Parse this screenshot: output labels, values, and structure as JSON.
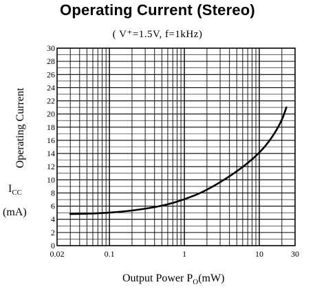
{
  "chart_data": {
    "type": "line",
    "title": "Operating Current (Stereo)",
    "subtitle": "( V⁺=1.5V,  f=1kHz)",
    "ylabel": "Operating Current",
    "ylabel_symbol": "I",
    "ylabel_symbol_sub": "CC",
    "ylabel_unit": "(mA)",
    "xlabel": "Output Power  P",
    "xlabel_sub": "O",
    "xlabel_unit": "(mW)",
    "x_scale": "log",
    "xlim": [
      0.02,
      30
    ],
    "ylim": [
      0,
      30
    ],
    "grid": true,
    "x_ticks": [
      {
        "value": 0.02,
        "label": "0.02"
      },
      {
        "value": 0.1,
        "label": "0.1"
      },
      {
        "value": 1,
        "label": "1"
      },
      {
        "value": 10,
        "label": "10"
      },
      {
        "value": 30,
        "label": "30"
      }
    ],
    "y_ticks": [
      0,
      2,
      4,
      6,
      8,
      10,
      12,
      14,
      16,
      18,
      20,
      22,
      24,
      26,
      28,
      30
    ],
    "series": [
      {
        "x": [
          0.03,
          0.05,
          0.1,
          0.2,
          0.5,
          1,
          2,
          5,
          10,
          15,
          20,
          23
        ],
        "y": [
          4.8,
          4.85,
          5.0,
          5.3,
          6.0,
          7.0,
          8.4,
          11.2,
          14.0,
          16.5,
          19.0,
          21.0
        ]
      }
    ]
  }
}
